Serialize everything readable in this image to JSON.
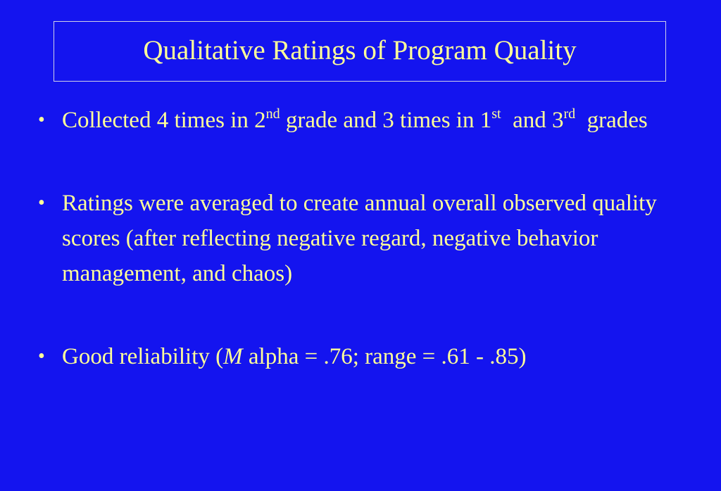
{
  "slide": {
    "title": "Qualitative Ratings of Program Quality",
    "bullet_glyph": "•",
    "bullets": [
      {
        "part1": "Collected 4 times in 2",
        "sup1": "nd",
        "part2": " grade and 3 times in 1",
        "sup2": "st",
        "part3": "  and 3",
        "sup3": "rd",
        "part4": "  grades"
      },
      {
        "text": "Ratings were averaged to create annual overall observed quality scores (after reflecting negative regard, negative behavior management, and chaos)"
      },
      {
        "before": "Good reliability (",
        "italic": "M",
        "after": " alpha = .76; range = .61 - .85)"
      }
    ]
  }
}
